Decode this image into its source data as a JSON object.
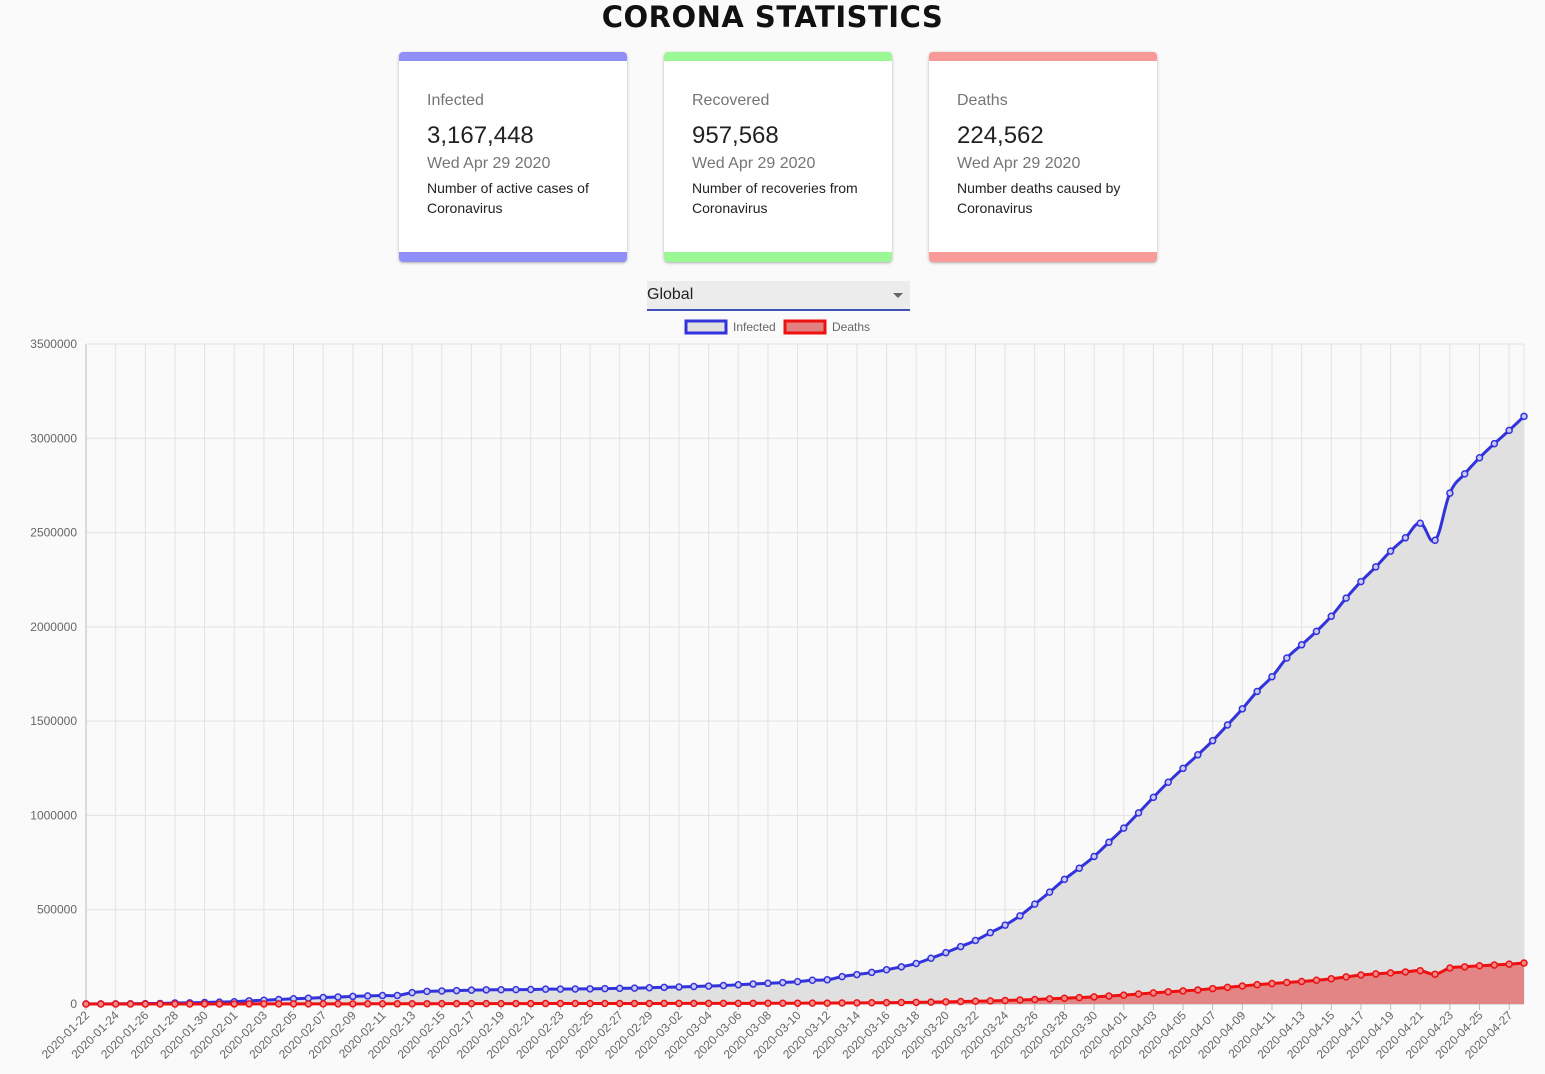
{
  "page": {
    "title": "CORONA STATISTICS"
  },
  "cards": [
    {
      "label": "Infected",
      "value": "3,167,448",
      "date": "Wed Apr 29 2020",
      "description": "Number of active cases of Coronavirus",
      "color": "#8f8ff7"
    },
    {
      "label": "Recovered",
      "value": "957,568",
      "date": "Wed Apr 29 2020",
      "description": "Number of recoveries from Coronavirus",
      "color": "#9cf795"
    },
    {
      "label": "Deaths",
      "value": "224,562",
      "date": "Wed Apr 29 2020",
      "description": "Number deaths caused by Coronavirus",
      "color": "#f79a98"
    }
  ],
  "country_select": {
    "value": "Global"
  },
  "chart_data": {
    "type": "line",
    "title": "",
    "xlabel": "",
    "ylabel": "",
    "ylim": [
      0,
      3500000
    ],
    "y_ticks": [
      0,
      500000,
      1000000,
      1500000,
      2000000,
      2500000,
      3000000,
      3500000
    ],
    "grid": true,
    "legend_position": "top",
    "x": [
      "2020-01-22",
      "2020-01-23",
      "2020-01-24",
      "2020-01-25",
      "2020-01-26",
      "2020-01-27",
      "2020-01-28",
      "2020-01-29",
      "2020-01-30",
      "2020-01-31",
      "2020-02-01",
      "2020-02-02",
      "2020-02-03",
      "2020-02-04",
      "2020-02-05",
      "2020-02-06",
      "2020-02-07",
      "2020-02-08",
      "2020-02-09",
      "2020-02-10",
      "2020-02-11",
      "2020-02-12",
      "2020-02-13",
      "2020-02-14",
      "2020-02-15",
      "2020-02-16",
      "2020-02-17",
      "2020-02-18",
      "2020-02-19",
      "2020-02-20",
      "2020-02-21",
      "2020-02-22",
      "2020-02-23",
      "2020-02-24",
      "2020-02-25",
      "2020-02-26",
      "2020-02-27",
      "2020-02-28",
      "2020-02-29",
      "2020-03-01",
      "2020-03-02",
      "2020-03-03",
      "2020-03-04",
      "2020-03-05",
      "2020-03-06",
      "2020-03-07",
      "2020-03-08",
      "2020-03-09",
      "2020-03-10",
      "2020-03-11",
      "2020-03-12",
      "2020-03-13",
      "2020-03-14",
      "2020-03-15",
      "2020-03-16",
      "2020-03-17",
      "2020-03-18",
      "2020-03-19",
      "2020-03-20",
      "2020-03-21",
      "2020-03-22",
      "2020-03-23",
      "2020-03-24",
      "2020-03-25",
      "2020-03-26",
      "2020-03-27",
      "2020-03-28",
      "2020-03-29",
      "2020-03-30",
      "2020-03-31",
      "2020-04-01",
      "2020-04-02",
      "2020-04-03",
      "2020-04-04",
      "2020-04-05",
      "2020-04-06",
      "2020-04-07",
      "2020-04-08",
      "2020-04-09",
      "2020-04-10",
      "2020-04-11",
      "2020-04-12",
      "2020-04-13",
      "2020-04-14",
      "2020-04-15",
      "2020-04-16",
      "2020-04-17",
      "2020-04-18",
      "2020-04-19",
      "2020-04-20",
      "2020-04-21",
      "2020-04-22",
      "2020-04-23",
      "2020-04-24",
      "2020-04-25",
      "2020-04-26",
      "2020-04-27",
      "2020-04-28"
    ],
    "x_tick_labels": [
      "2020-01-22",
      "2020-01-24",
      "2020-01-26",
      "2020-01-28",
      "2020-01-30",
      "2020-02-01",
      "2020-02-03",
      "2020-02-05",
      "2020-02-07",
      "2020-02-09",
      "2020-02-11",
      "2020-02-13",
      "2020-02-15",
      "2020-02-17",
      "2020-02-19",
      "2020-02-21",
      "2020-02-23",
      "2020-02-25",
      "2020-02-27",
      "2020-02-29",
      "2020-03-02",
      "2020-03-04",
      "2020-03-06",
      "2020-03-08",
      "2020-03-10",
      "2020-03-12",
      "2020-03-14",
      "2020-03-16",
      "2020-03-18",
      "2020-03-20",
      "2020-03-22",
      "2020-03-24",
      "2020-03-26",
      "2020-03-28",
      "2020-03-30",
      "2020-04-01",
      "2020-04-03",
      "2020-04-05",
      "2020-04-07",
      "2020-04-09",
      "2020-04-11",
      "2020-04-13",
      "2020-04-15",
      "2020-04-17",
      "2020-04-19",
      "2020-04-21",
      "2020-04-23",
      "2020-04-25",
      "2020-04-27"
    ],
    "series": [
      {
        "name": "Infected",
        "line_color": "#3333dd",
        "fill_color": "#e0e0e0",
        "values": [
          555,
          654,
          941,
          1434,
          2118,
          2927,
          5578,
          6166,
          8234,
          9927,
          12038,
          16787,
          19881,
          23892,
          27635,
          30794,
          34391,
          37120,
          40150,
          42762,
          44802,
          45221,
          60368,
          66885,
          69030,
          71224,
          73258,
          75136,
          75639,
          76197,
          76819,
          78572,
          78958,
          79561,
          80406,
          81388,
          82746,
          84112,
          86011,
          88369,
          90306,
          92840,
          95120,
          97886,
          101801,
          105847,
          109821,
          113590,
          118620,
          125875,
          128352,
          145205,
          156101,
          167454,
          181574,
          197102,
          214821,
          242570,
          272208,
          304507,
          336953,
          378235,
          418045,
          467653,
          529591,
          593291,
          660706,
          720117,
          782365,
          857487,
          932605,
          1013466,
          1095917,
          1176060,
          1249754,
          1321481,
          1396476,
          1479804,
          1565278,
          1657526,
          1735650,
          1834721,
          1904838,
          1976191,
          2056055,
          2152437,
          2240191,
          2317759,
          2401378,
          2472259,
          2549294,
          2459000,
          2708885,
          2811193,
          2896746,
          2971475,
          3041764,
          3116398
        ]
      },
      {
        "name": "Deaths",
        "line_color": "#ee1111",
        "fill_color": "#e38080",
        "values": [
          17,
          18,
          26,
          42,
          56,
          82,
          131,
          133,
          171,
          213,
          259,
          362,
          426,
          492,
          564,
          634,
          719,
          806,
          906,
          1013,
          1113,
          1118,
          1371,
          1523,
          1666,
          1770,
          1868,
          2007,
          2122,
          2247,
          2251,
          2458,
          2469,
          2629,
          2708,
          2770,
          2814,
          2872,
          2941,
          2996,
          3085,
          3160,
          3254,
          3348,
          3460,
          3558,
          3802,
          3988,
          4262,
          4615,
          4720,
          5404,
          5819,
          6440,
          7126,
          7905,
          8733,
          9867,
          11299,
          12973,
          14623,
          16497,
          18615,
          21181,
          23970,
          27198,
          30652,
          33925,
          37582,
          42107,
          46809,
          52983,
          58787,
          64606,
          69374,
          74565,
          81865,
          88338,
          95455,
          102525,
          108503,
          114090,
          119482,
          125983,
          134176,
          143800,
          153822,
          159510,
          165044,
          169985,
          176583,
          158000,
          190858,
          197159,
          202846,
          206544,
          211167,
          217153
        ]
      }
    ]
  }
}
